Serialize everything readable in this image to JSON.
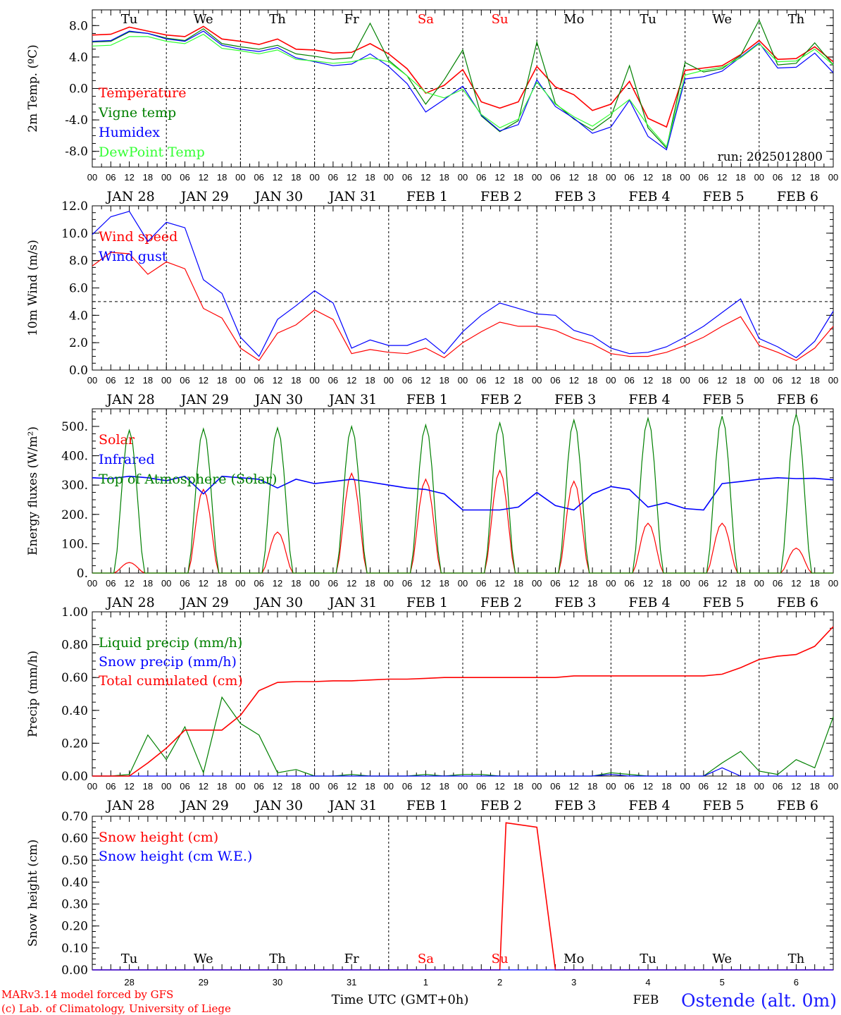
{
  "colors": {
    "red": "#ff0000",
    "green": "#008000",
    "blue": "#0000ff",
    "lightgreen": "#33ff33",
    "black": "#000000",
    "location": "#1a1aff"
  },
  "time_axis": {
    "hour_labels": [
      "00",
      "06",
      "12",
      "18"
    ],
    "last_label": "00",
    "dates": [
      "JAN 28",
      "JAN 29",
      "JAN 30",
      "JAN 31",
      "FEB  1",
      "FEB  2",
      "FEB  3",
      "FEB  4",
      "FEB  5",
      "FEB  6"
    ],
    "weekdays": [
      {
        "label": "Tu",
        "color": "#000000"
      },
      {
        "label": "We",
        "color": "#000000"
      },
      {
        "label": "Th",
        "color": "#000000"
      },
      {
        "label": "Fr",
        "color": "#000000"
      },
      {
        "label": "Sa",
        "color": "#ff0000"
      },
      {
        "label": "Su",
        "color": "#ff0000"
      },
      {
        "label": "Mo",
        "color": "#000000"
      },
      {
        "label": "Tu",
        "color": "#000000"
      },
      {
        "label": "We",
        "color": "#000000"
      },
      {
        "label": "Th",
        "color": "#000000"
      }
    ],
    "day_numbers": [
      "28",
      "29",
      "30",
      "31",
      "1",
      "2",
      "3",
      "4",
      "5",
      "6"
    ],
    "month_label": "FEB",
    "xlabel": "Time UTC (GMT+0h)"
  },
  "footer": {
    "credit_line1": "MARv3.14 model forced by GFS",
    "credit_line2": "(c) Lab. of Climatology, University of Liege",
    "location": "Ostende (alt. 0m)"
  },
  "chart_data": [
    {
      "type": "line",
      "ylabel": "2m Temp. (ºC)",
      "ylim": [
        -10,
        10
      ],
      "yticks": [
        8,
        4,
        0,
        -4,
        -8
      ],
      "ytick_labels": [
        "8.0",
        "4.0",
        "0.0",
        "-4.0",
        "-8.0"
      ],
      "hline": 0,
      "run_label": "run: 2025012800",
      "x_hours": [
        0,
        6,
        12,
        18,
        24,
        30,
        36,
        42,
        48,
        54,
        60,
        66,
        72,
        78,
        84,
        90,
        96,
        102,
        108,
        114,
        120,
        126,
        132,
        138,
        144,
        150,
        156,
        162,
        168,
        174,
        180,
        186,
        192,
        198,
        204,
        210,
        216,
        222,
        228,
        234,
        240
      ],
      "series": [
        {
          "name": "Temperature",
          "color": "#ff0000",
          "values": [
            6.8,
            6.9,
            7.8,
            7.3,
            6.8,
            6.6,
            7.9,
            6.3,
            6.0,
            5.6,
            6.3,
            5.0,
            4.9,
            4.5,
            4.6,
            5.7,
            4.4,
            2.5,
            -0.6,
            0.4,
            2.4,
            -1.7,
            -2.5,
            -1.7,
            2.8,
            0.2,
            -0.8,
            -2.8,
            -2.0,
            0.9,
            -3.8,
            -4.9,
            2.3,
            2.6,
            2.9,
            4.3,
            6.1,
            3.7,
            3.8,
            5.3,
            3.4
          ]
        },
        {
          "name": "Vigne temp",
          "color": "#008000",
          "values": [
            5.9,
            6.0,
            7.2,
            7.0,
            6.4,
            6.1,
            7.6,
            5.7,
            5.3,
            5.0,
            5.5,
            4.4,
            4.1,
            3.7,
            3.9,
            8.3,
            3.6,
            1.6,
            -2.0,
            1.1,
            4.9,
            -3.5,
            -5.5,
            -4.1,
            5.9,
            -1.9,
            -3.9,
            -5.3,
            -3.6,
            2.9,
            -5.0,
            -7.6,
            3.3,
            2.1,
            2.5,
            4.2,
            8.7,
            3.0,
            3.2,
            5.8,
            3.0
          ]
        },
        {
          "name": "Humidex",
          "color": "#0000ff",
          "values": [
            6.0,
            6.1,
            7.3,
            7.0,
            6.3,
            6.0,
            7.3,
            5.5,
            5.0,
            4.7,
            5.2,
            3.9,
            3.4,
            2.9,
            3.1,
            4.4,
            2.8,
            0.6,
            -3.0,
            -1.4,
            0.3,
            -3.4,
            -5.4,
            -4.6,
            1.1,
            -2.3,
            -3.8,
            -5.7,
            -4.9,
            -1.5,
            -6.1,
            -7.8,
            1.2,
            1.5,
            2.2,
            4.0,
            5.8,
            2.6,
            2.7,
            4.5,
            2.0
          ]
        },
        {
          "name": "DewPoint Temp",
          "color": "#33ff33",
          "values": [
            5.4,
            5.5,
            6.6,
            6.6,
            6.0,
            5.7,
            6.9,
            5.1,
            4.8,
            4.4,
            4.9,
            3.7,
            3.5,
            3.2,
            3.4,
            3.9,
            3.4,
            1.6,
            -0.5,
            -1.2,
            -0.1,
            -3.3,
            -5.0,
            -3.9,
            0.8,
            -2.0,
            -3.6,
            -4.8,
            -3.2,
            -1.4,
            -4.7,
            -7.4,
            1.7,
            2.3,
            2.7,
            3.9,
            5.7,
            3.4,
            3.5,
            5.0,
            3.0
          ]
        }
      ]
    },
    {
      "type": "line",
      "ylabel": "10m Wind (m/s)",
      "ylim": [
        0,
        12
      ],
      "yticks": [
        12,
        10,
        8,
        6,
        4,
        2,
        0
      ],
      "ytick_labels": [
        "12.0",
        "10.0",
        "8.0",
        "6.0",
        "4.0",
        "2.0",
        "0.0"
      ],
      "hline": 5,
      "x_hours": [
        0,
        6,
        12,
        18,
        24,
        30,
        36,
        42,
        48,
        54,
        60,
        66,
        72,
        78,
        84,
        90,
        96,
        102,
        108,
        114,
        120,
        126,
        132,
        138,
        144,
        150,
        156,
        162,
        168,
        174,
        180,
        186,
        192,
        198,
        204,
        210,
        216,
        222,
        228,
        234,
        240
      ],
      "series": [
        {
          "name": "Wind speed",
          "color": "#ff0000",
          "values": [
            7.6,
            8.6,
            8.5,
            7.0,
            7.9,
            7.4,
            4.5,
            3.8,
            1.6,
            0.7,
            2.7,
            3.3,
            4.4,
            3.7,
            1.2,
            1.5,
            1.3,
            1.2,
            1.6,
            0.9,
            2.0,
            2.8,
            3.5,
            3.2,
            3.2,
            2.9,
            2.3,
            1.9,
            1.2,
            1.0,
            1.0,
            1.3,
            1.8,
            2.4,
            3.2,
            3.9,
            1.8,
            1.3,
            0.7,
            1.6,
            3.2
          ]
        },
        {
          "name": "Wind gust",
          "color": "#0000ff",
          "values": [
            9.9,
            11.2,
            11.6,
            9.4,
            10.8,
            10.4,
            6.6,
            5.6,
            2.4,
            1.0,
            3.7,
            4.7,
            5.8,
            4.9,
            1.6,
            2.2,
            1.8,
            1.8,
            2.3,
            1.2,
            2.8,
            4.0,
            4.9,
            4.5,
            4.1,
            4.0,
            2.9,
            2.5,
            1.6,
            1.2,
            1.3,
            1.7,
            2.4,
            3.2,
            4.2,
            5.2,
            2.3,
            1.7,
            0.9,
            2.1,
            4.3
          ]
        }
      ]
    },
    {
      "type": "line",
      "ylabel": "Energy fluxes (W/m²)",
      "ylim": [
        0,
        560
      ],
      "yticks": [
        500,
        400,
        300,
        200,
        100,
        0
      ],
      "ytick_labels": [
        "500.",
        "400.",
        "300.",
        "200.",
        "100.",
        "0."
      ],
      "x_hours": [
        0,
        6,
        12,
        18,
        24,
        30,
        36,
        42,
        48,
        54,
        60,
        66,
        72,
        78,
        84,
        90,
        96,
        102,
        108,
        114,
        120,
        126,
        132,
        138,
        144,
        150,
        156,
        162,
        168,
        174,
        180,
        186,
        192,
        198,
        204,
        210,
        216,
        222,
        228,
        234,
        240
      ],
      "series": [
        {
          "name": "Solar",
          "color": "#ff0000",
          "peaks": [
            36,
            285,
            140,
            340,
            320,
            350,
            313,
            170,
            170,
            85
          ]
        },
        {
          "name": "Infrared",
          "color": "#0000ff",
          "values": [
            325,
            322,
            330,
            325,
            315,
            330,
            270,
            330,
            325,
            320,
            290,
            320,
            305,
            312,
            320,
            310,
            300,
            290,
            285,
            270,
            215,
            215,
            215,
            225,
            275,
            230,
            215,
            270,
            295,
            285,
            225,
            240,
            220,
            215,
            305,
            312,
            320,
            325,
            322,
            323,
            318
          ]
        },
        {
          "name": "Top of Atmosphere (Solar)",
          "color": "#008000",
          "peaks": [
            487,
            492,
            495,
            500,
            505,
            512,
            522,
            528,
            535,
            542
          ]
        }
      ]
    },
    {
      "type": "line",
      "ylabel": "Precip (mm/h)",
      "ylim": [
        0,
        1
      ],
      "yticks": [
        1.0,
        0.8,
        0.6,
        0.4,
        0.2,
        0.0
      ],
      "ytick_labels": [
        "1.00",
        "0.80",
        "0.60",
        "0.40",
        "0.20",
        "0.00"
      ],
      "x_hours": [
        0,
        6,
        12,
        18,
        24,
        30,
        36,
        42,
        48,
        54,
        60,
        66,
        72,
        78,
        84,
        90,
        96,
        102,
        108,
        114,
        120,
        126,
        132,
        138,
        144,
        150,
        156,
        162,
        168,
        174,
        180,
        186,
        192,
        198,
        204,
        210,
        216,
        222,
        228,
        234,
        240
      ],
      "series": [
        {
          "name": "Liquid precip (mm/h)",
          "color": "#008000",
          "values": [
            0,
            0,
            0.01,
            0.25,
            0.1,
            0.3,
            0.02,
            0.48,
            0.32,
            0.25,
            0.02,
            0.04,
            0,
            0,
            0.01,
            0,
            0,
            0,
            0.01,
            0,
            0.01,
            0.01,
            0,
            0,
            0,
            0,
            0,
            0,
            0.02,
            0.01,
            0,
            0,
            0,
            0,
            0.08,
            0.15,
            0.03,
            0.01,
            0.1,
            0.05,
            0.36
          ]
        },
        {
          "name": "Snow precip (mm/h)",
          "color": "#0000ff",
          "values": [
            0,
            0,
            0,
            0,
            0,
            0,
            0,
            0,
            0,
            0,
            0,
            0,
            0,
            0,
            0,
            0,
            0,
            0,
            0,
            0,
            0,
            0,
            0,
            0,
            0,
            0,
            0,
            0,
            0.01,
            0,
            0,
            0,
            0,
            0,
            0.05,
            0,
            0,
            0,
            0,
            0,
            0
          ]
        },
        {
          "name": "Total cumulated (cm)",
          "color": "#ff0000",
          "values": [
            0,
            0,
            0,
            0.08,
            0.17,
            0.28,
            0.28,
            0.28,
            0.37,
            0.52,
            0.57,
            0.575,
            0.575,
            0.58,
            0.58,
            0.585,
            0.59,
            0.59,
            0.595,
            0.6,
            0.6,
            0.6,
            0.6,
            0.6,
            0.6,
            0.6,
            0.61,
            0.61,
            0.61,
            0.61,
            0.61,
            0.61,
            0.61,
            0.61,
            0.62,
            0.66,
            0.71,
            0.73,
            0.74,
            0.79,
            0.91
          ]
        }
      ]
    },
    {
      "type": "line",
      "ylabel": "Snow height (cm)",
      "ylim": [
        0,
        0.7
      ],
      "yticks": [
        0.7,
        0.6,
        0.5,
        0.4,
        0.3,
        0.2,
        0.1,
        0.0
      ],
      "ytick_labels": [
        "0.70",
        "0.60",
        "0.50",
        "0.40",
        "0.30",
        "0.20",
        "0.10",
        "0.00"
      ],
      "x_hours": [
        0,
        132,
        134,
        144,
        150,
        240
      ],
      "series": [
        {
          "name": "Snow height (cm)",
          "color": "#ff0000",
          "values": [
            0,
            0,
            0.67,
            0.65,
            0,
            0
          ]
        },
        {
          "name": "Snow height (cm W.E.)",
          "color": "#0000ff",
          "values": [
            0,
            0,
            0,
            0,
            0,
            0
          ]
        }
      ]
    }
  ]
}
